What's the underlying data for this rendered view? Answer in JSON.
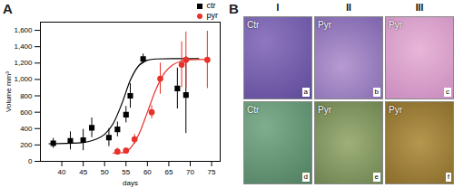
{
  "chart_data": {
    "type": "scatter",
    "panel_label": "A",
    "xlabel": "days",
    "ylabel": "Volume mm³",
    "xlim": [
      35,
      77
    ],
    "xticks": [
      40,
      45,
      50,
      55,
      60,
      65,
      70,
      75
    ],
    "ylim": [
      0,
      1700
    ],
    "yticks": [
      0,
      200,
      400,
      600,
      800,
      1000,
      1200,
      1400,
      1600
    ],
    "grid": false,
    "legend": "top-right",
    "series": [
      {
        "name": "ctr",
        "color": "#000000",
        "marker": "square",
        "x": [
          38,
          42,
          45,
          47,
          51,
          53,
          55,
          56,
          59,
          67,
          69
        ],
        "values": [
          220,
          250,
          260,
          410,
          290,
          390,
          570,
          800,
          1250,
          890,
          810
        ],
        "error": [
          60,
          110,
          130,
          120,
          110,
          90,
          100,
          150,
          60,
          250,
          470
        ],
        "fit": {
          "x": [
            37,
            44,
            48,
            50,
            52,
            54,
            56,
            58,
            60,
            62,
            66,
            72
          ],
          "values": [
            215,
            225,
            270,
            330,
            460,
            700,
            990,
            1170,
            1235,
            1250,
            1255,
            1255
          ]
        }
      },
      {
        "name": "pyr",
        "color": "#e8312a",
        "marker": "circle",
        "x": [
          53,
          55,
          57,
          61,
          63,
          68,
          69,
          74
        ],
        "values": [
          120,
          130,
          270,
          600,
          1010,
          1180,
          1240,
          1240
        ],
        "error": [
          40,
          30,
          60,
          80,
          190,
          280,
          340,
          350
        ],
        "fit": {
          "x": [
            52,
            54,
            56,
            58,
            60,
            62,
            64,
            66,
            68,
            70,
            74
          ],
          "values": [
            100,
            105,
            160,
            330,
            600,
            880,
            1080,
            1180,
            1225,
            1240,
            1245
          ]
        }
      }
    ]
  },
  "panel_b": {
    "label": "B",
    "columns": [
      "I",
      "II",
      "III"
    ],
    "rows": [
      [
        {
          "text": "Ctr",
          "letter": "a"
        },
        {
          "text": "Pyr",
          "letter": "b"
        },
        {
          "text": "Pyr",
          "letter": "c"
        }
      ],
      [
        {
          "text": "Ctr",
          "letter": "d"
        },
        {
          "text": "Pyr",
          "letter": "e"
        },
        {
          "text": "Pyr",
          "letter": "f"
        }
      ]
    ]
  }
}
